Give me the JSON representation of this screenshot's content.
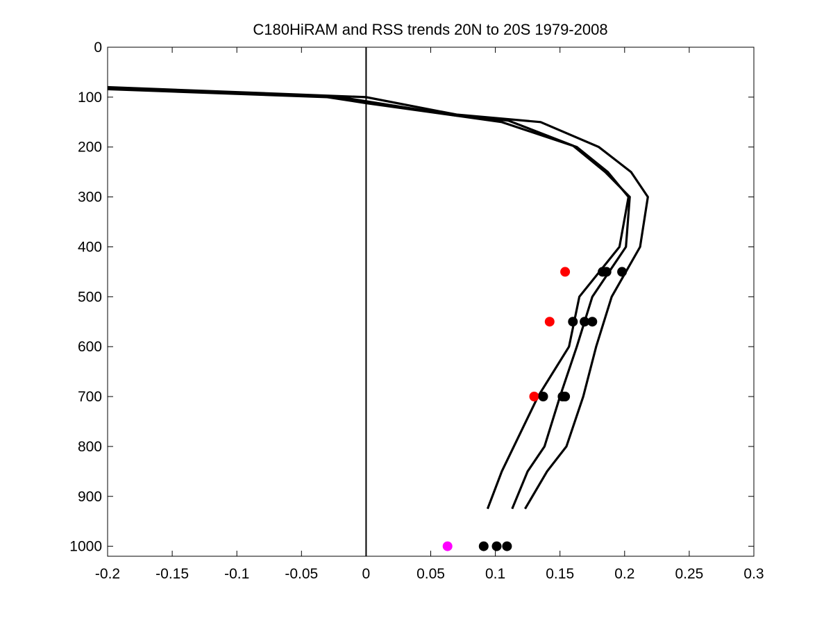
{
  "chart_data": {
    "type": "line",
    "title": "C180HiRAM and RSS trends 20N to 20S 1979-2008",
    "xlabel": "",
    "ylabel": "",
    "xlim": [
      -0.2,
      0.3
    ],
    "ylim": [
      0,
      1020
    ],
    "y_reversed": true,
    "grid": false,
    "legend": "none",
    "xticks": [
      "-0.2",
      "-0.15",
      "-0.1",
      "-0.05",
      "0",
      "0.05",
      "0.1",
      "0.15",
      "0.2",
      "0.25",
      "0.3"
    ],
    "yticks": [
      "0",
      "100",
      "200",
      "300",
      "400",
      "500",
      "600",
      "700",
      "800",
      "900",
      "1000"
    ],
    "xtick_values": [
      -0.2,
      -0.15,
      -0.1,
      -0.05,
      0,
      0.05,
      0.1,
      0.15,
      0.2,
      0.25,
      0.3
    ],
    "ytick_values": [
      0,
      100,
      200,
      300,
      400,
      500,
      600,
      700,
      800,
      900,
      1000
    ],
    "reference_line_x": 0,
    "series": [
      {
        "color": "#000000",
        "points": [
          [
            -0.2,
            80
          ],
          [
            0.0,
            100
          ],
          [
            0.07,
            135
          ],
          [
            0.135,
            150
          ],
          [
            0.18,
            200
          ],
          [
            0.205,
            250
          ],
          [
            0.218,
            300
          ],
          [
            0.212,
            400
          ],
          [
            0.19,
            500
          ],
          [
            0.178,
            600
          ],
          [
            0.168,
            700
          ],
          [
            0.155,
            800
          ],
          [
            0.14,
            850
          ],
          [
            0.123,
            925
          ]
        ]
      },
      {
        "color": "#000000",
        "points": [
          [
            -0.2,
            82
          ],
          [
            -0.02,
            100
          ],
          [
            0.07,
            137
          ],
          [
            0.11,
            147
          ],
          [
            0.16,
            197
          ],
          [
            0.185,
            250
          ],
          [
            0.204,
            300
          ],
          [
            0.201,
            400
          ],
          [
            0.175,
            500
          ],
          [
            0.163,
            600
          ],
          [
            0.15,
            700
          ],
          [
            0.138,
            800
          ],
          [
            0.125,
            850
          ],
          [
            0.113,
            925
          ]
        ]
      },
      {
        "color": "#000000",
        "points": [
          [
            -0.2,
            84
          ],
          [
            -0.03,
            100
          ],
          [
            0.0,
            112
          ],
          [
            0.072,
            138
          ],
          [
            0.105,
            150
          ],
          [
            0.163,
            200
          ],
          [
            0.187,
            250
          ],
          [
            0.203,
            300
          ],
          [
            0.196,
            400
          ],
          [
            0.165,
            500
          ],
          [
            0.157,
            600
          ],
          [
            0.133,
            700
          ],
          [
            0.105,
            850
          ],
          [
            0.094,
            925
          ]
        ]
      }
    ],
    "markers": [
      {
        "color": "#ff0000",
        "points": [
          [
            0.154,
            450
          ],
          [
            0.142,
            550
          ],
          [
            0.13,
            700
          ]
        ]
      },
      {
        "color": "#000000",
        "points": [
          [
            0.183,
            450
          ],
          [
            0.186,
            450
          ],
          [
            0.198,
            450
          ],
          [
            0.16,
            550
          ],
          [
            0.169,
            550
          ],
          [
            0.175,
            550
          ],
          [
            0.137,
            700
          ],
          [
            0.152,
            700
          ],
          [
            0.154,
            700
          ],
          [
            0.091,
            1000
          ],
          [
            0.101,
            1000
          ],
          [
            0.109,
            1000
          ]
        ]
      },
      {
        "color": "#ff00ff",
        "points": [
          [
            0.063,
            1000
          ]
        ]
      }
    ]
  }
}
